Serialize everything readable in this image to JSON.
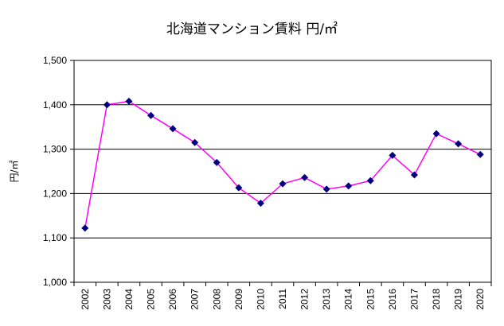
{
  "chart_data": {
    "type": "line",
    "title": "北海道マンション賃料 円/㎡",
    "xlabel": "",
    "ylabel": "円/㎡",
    "categories": [
      "2002",
      "2003",
      "2004",
      "2005",
      "2006",
      "2007",
      "2008",
      "2009",
      "2010",
      "2011",
      "2012",
      "2013",
      "2014",
      "2015",
      "2016",
      "2017",
      "2018",
      "2019",
      "2020"
    ],
    "series": [
      {
        "name": "",
        "values": [
          1122,
          1400,
          1408,
          1376,
          1346,
          1315,
          1270,
          1213,
          1178,
          1222,
          1236,
          1210,
          1217,
          1229,
          1286,
          1242,
          1335,
          1312,
          1288
        ],
        "line_color": "#FF00FF",
        "marker_color": "#000080"
      }
    ],
    "ylim": [
      1000,
      1500
    ],
    "yticks": [
      1000,
      1100,
      1200,
      1300,
      1400,
      1500
    ],
    "ytick_labels": [
      "1,000",
      "1,100",
      "1,200",
      "1,300",
      "1,400",
      "1,500"
    ],
    "grid": true,
    "legend": "none"
  }
}
